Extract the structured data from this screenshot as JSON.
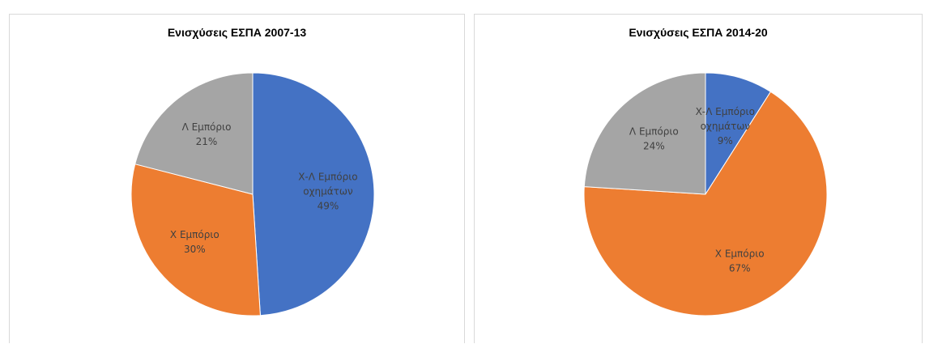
{
  "chart_data": [
    {
      "type": "pie",
      "title": "Ενισχύσεις ΕΣΠΑ 2007-13",
      "slices": [
        {
          "label_lines": [
            "Χ-Λ Εμπόριο",
            "οχημάτων"
          ],
          "value": 49,
          "value_label": "49%",
          "color": "#4472c4"
        },
        {
          "label_lines": [
            "Χ Εμπόριο"
          ],
          "value": 30,
          "value_label": "30%",
          "color": "#ed7d31"
        },
        {
          "label_lines": [
            "Λ Εμπόριο"
          ],
          "value": 21,
          "value_label": "21%",
          "color": "#a5a5a5"
        }
      ]
    },
    {
      "type": "pie",
      "title": "Ενισχύσεις ΕΣΠΑ 2014-20",
      "slices": [
        {
          "label_lines": [
            "Χ-Λ Εμπόριο",
            "οχημάτων"
          ],
          "value": 9,
          "value_label": "9%",
          "color": "#4472c4"
        },
        {
          "label_lines": [
            "Χ Εμπόριο"
          ],
          "value": 67,
          "value_label": "67%",
          "color": "#ed7d31"
        },
        {
          "label_lines": [
            "Λ Εμπόριο"
          ],
          "value": 24,
          "value_label": "24%",
          "color": "#a5a5a5"
        }
      ]
    }
  ]
}
